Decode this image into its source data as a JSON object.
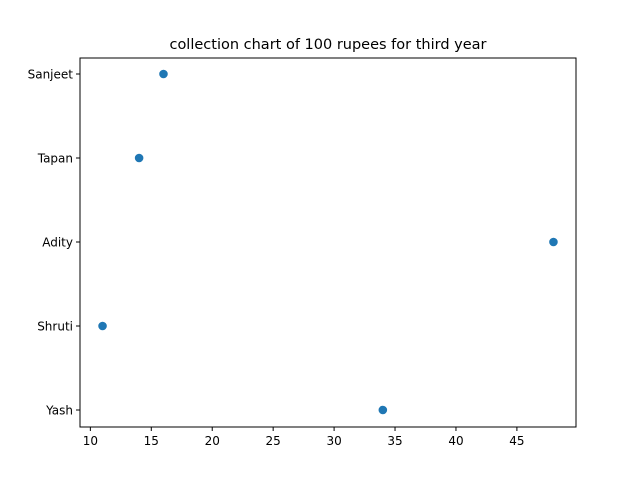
{
  "chart_data": {
    "type": "scatter",
    "title": "collection chart of 100 rupees for third year",
    "xlabel": "",
    "ylabel": "",
    "categories": [
      "Yash",
      "Shruti",
      "Adity",
      "Tapan",
      "Sanjeet"
    ],
    "points": [
      {
        "name": "Sanjeet",
        "value": 16
      },
      {
        "name": "Tapan",
        "value": 14
      },
      {
        "name": "Adity",
        "value": 48
      },
      {
        "name": "Shruti",
        "value": 11
      },
      {
        "name": "Yash",
        "value": 34
      }
    ],
    "x_ticks": [
      10,
      15,
      20,
      25,
      30,
      35,
      40,
      45
    ],
    "xlim": [
      9.15,
      49.85
    ],
    "grid": false,
    "marker_color": "#1f77b4"
  }
}
